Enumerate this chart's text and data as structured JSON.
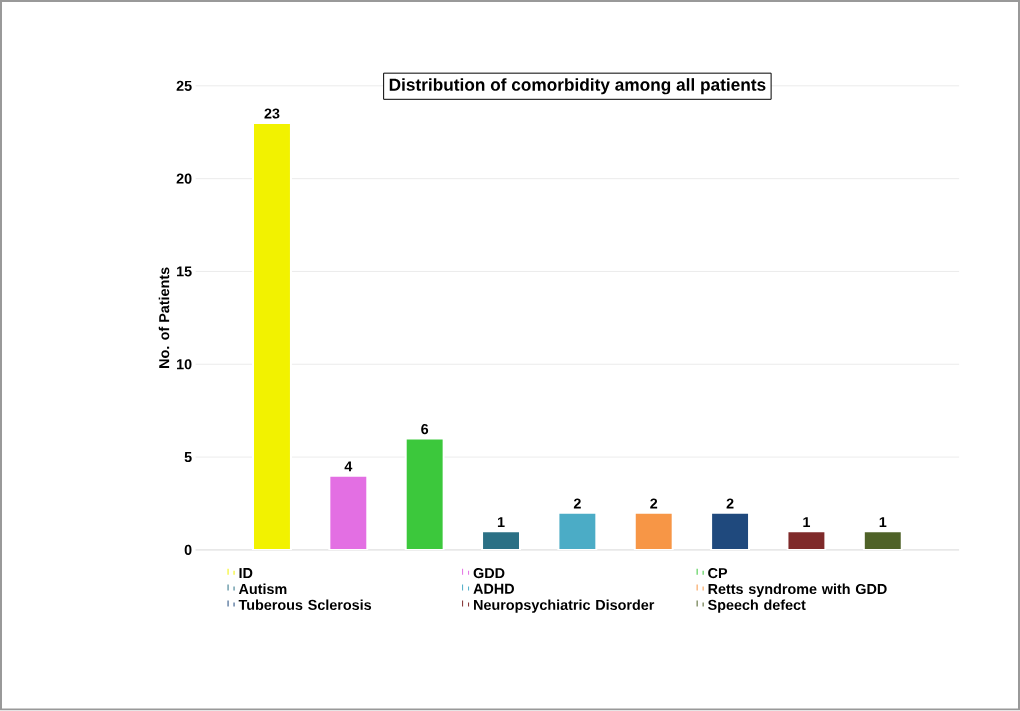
{
  "chart_data": {
    "type": "bar",
    "title": "Distribution of comorbidity among all patients",
    "ylabel": "No. of Patients",
    "categories": [
      null,
      null,
      null,
      null,
      null,
      null,
      null,
      null,
      null
    ],
    "series": [
      {
        "name": "ID",
        "color": "#f2f200",
        "values": [
          23,
          null,
          null,
          null,
          null,
          null,
          null,
          null,
          null
        ]
      },
      {
        "name": "GDD",
        "color": "#e36fe3",
        "values": [
          null,
          4,
          null,
          null,
          null,
          null,
          null,
          null,
          null
        ]
      },
      {
        "name": "CP",
        "color": "#3cc83c",
        "values": [
          null,
          null,
          6,
          null,
          null,
          null,
          null,
          null,
          null
        ]
      },
      {
        "name": "Autism",
        "color": "#2b7085",
        "values": [
          null,
          null,
          null,
          1,
          null,
          null,
          null,
          null,
          null
        ]
      },
      {
        "name": "ADHD",
        "color": "#4bacc6",
        "values": [
          null,
          null,
          null,
          null,
          2,
          null,
          null,
          null,
          null
        ]
      },
      {
        "name": "Retts syndrome with GDD",
        "color": "#f79646",
        "values": [
          null,
          null,
          null,
          null,
          null,
          2,
          null,
          null,
          null
        ]
      },
      {
        "name": "Tuberous Sclerosis",
        "color": "#1f497d",
        "values": [
          null,
          null,
          null,
          null,
          null,
          null,
          2,
          null,
          null
        ]
      },
      {
        "name": "Neuropsychiatric Disorder",
        "color": "#7f2a2a",
        "values": [
          null,
          null,
          null,
          null,
          null,
          null,
          null,
          1,
          null
        ]
      },
      {
        "name": "Speech defect",
        "color": "#4f6228",
        "values": [
          null,
          null,
          null,
          null,
          null,
          null,
          null,
          null,
          1
        ]
      }
    ],
    "ylim": [
      0,
      25
    ],
    "yticks": [
      0,
      5,
      10,
      15,
      20,
      25
    ],
    "grid": "y",
    "legend": "bottom",
    "data_labels": true,
    "tick_labels": "y"
  }
}
